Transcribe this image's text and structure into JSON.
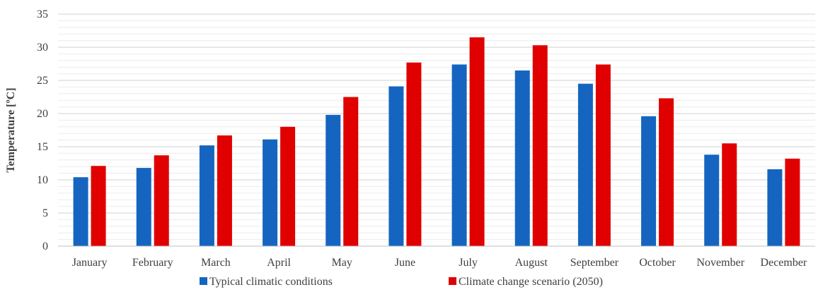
{
  "chart_data": {
    "type": "bar",
    "title": "",
    "xlabel": "",
    "ylabel": "Temperature [ºC]",
    "ylim": [
      0,
      35
    ],
    "yticks": [
      0,
      5,
      10,
      15,
      20,
      25,
      30,
      35
    ],
    "grid": true,
    "minor_grid": true,
    "legend_position": "bottom",
    "categories": [
      "January",
      "February",
      "March",
      "April",
      "May",
      "June",
      "July",
      "August",
      "September",
      "October",
      "November",
      "December"
    ],
    "series": [
      {
        "name": "Typical climatic conditions",
        "color": "#1565C0",
        "values": [
          10.4,
          11.8,
          15.2,
          16.1,
          19.8,
          24.1,
          27.4,
          26.5,
          24.5,
          19.6,
          13.8,
          11.6
        ]
      },
      {
        "name": "Climate change scenario (2050)",
        "color": "#E00000",
        "values": [
          12.1,
          13.7,
          16.7,
          18.0,
          22.5,
          27.7,
          31.5,
          30.3,
          27.4,
          22.3,
          15.5,
          13.2
        ]
      }
    ]
  }
}
